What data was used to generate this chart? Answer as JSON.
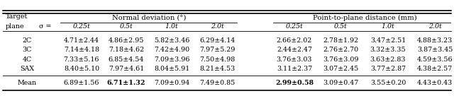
{
  "header1": "Normal deviation (°)",
  "header2": "Point-to-plane distance (mm)",
  "col_headers": [
    "0.25t",
    "0.5t",
    "1.0t",
    "2.0t",
    "0.25t",
    "0.5t",
    "1.0t",
    "2.0t"
  ],
  "row_labels": [
    "2C",
    "3C",
    "4C",
    "SAX",
    "Mean"
  ],
  "table_data": [
    [
      "4.71±2.44",
      "4.86±2.95",
      "5.82±3.46",
      "6.29±4.14",
      "2.66±2.02",
      "2.78±1.92",
      "3.47±2.51",
      "4.88±3.23"
    ],
    [
      "7.14±4.18",
      "7.18±4.62",
      "7.42±4.90",
      "7.97±5.29",
      "2.44±2.47",
      "2.76±2.70",
      "3.32±3.35",
      "3.87±3.45"
    ],
    [
      "7.33±5.16",
      "6.85±4.54",
      "7.09±3.96",
      "7.50±4.98",
      "3.76±3.03",
      "3.76±3.09",
      "3.63±2.83",
      "4.59±3.56"
    ],
    [
      "8.40±5.10",
      "7.97±4.61",
      "8.04±5.91",
      "8.21±4.53",
      "3.11±2.37",
      "3.07±2.45",
      "3.77±2.87",
      "4.38±2.57"
    ],
    [
      "6.89±1.56",
      "6.71±1.32",
      "7.09±0.94",
      "7.49±0.85",
      "2.99±0.58",
      "3.09±0.47",
      "3.55±0.20",
      "4.43±0.43"
    ]
  ],
  "bold_nd_col": 1,
  "bold_pt_col": 0,
  "figsize": [
    6.4,
    1.53
  ],
  "dpi": 100,
  "bg_color": "#ffffff",
  "fontsize": 6.8,
  "header_fontsize": 7.2
}
